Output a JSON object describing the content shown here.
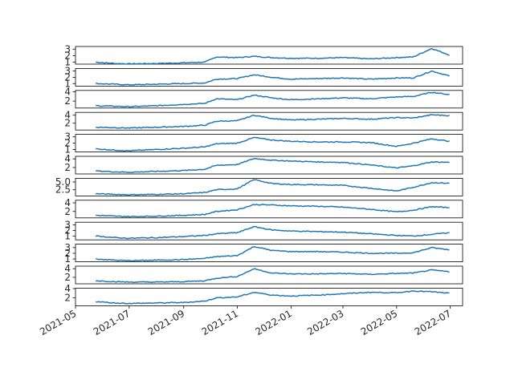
{
  "chart_data": {
    "type": "line",
    "layout": "12 stacked panels sharing the x axis",
    "grid": false,
    "legend": "none",
    "line_color": "#1f77b4",
    "x_tick_labels": [
      "2021-05",
      "2021-07",
      "2021-09",
      "2021-11",
      "2022-01",
      "2022-03",
      "2022-05",
      "2022-07"
    ],
    "x_range": [
      "2021-05-01",
      "2022-07-15"
    ],
    "x_knots": [
      "2021-05-24",
      "2021-06-15",
      "2021-07-01",
      "2021-08-01",
      "2021-09-01",
      "2021-09-25",
      "2021-10-08",
      "2021-11-01",
      "2021-11-20",
      "2021-12-10",
      "2022-01-01",
      "2022-02-01",
      "2022-03-01",
      "2022-04-01",
      "2022-05-01",
      "2022-05-20",
      "2022-06-10",
      "2022-06-30"
    ],
    "panels": [
      {
        "ylim": [
          0.7,
          3.4
        ],
        "yticks": [
          1,
          2,
          3
        ],
        "tick_labels": [
          "1",
          "2",
          "3"
        ],
        "y": [
          1.0,
          0.8,
          0.75,
          0.8,
          0.9,
          1.0,
          1.8,
          1.7,
          1.9,
          1.7,
          1.6,
          1.6,
          1.7,
          1.5,
          1.7,
          1.8,
          3.1,
          2.1
        ]
      },
      {
        "ylim": [
          0.6,
          3.4
        ],
        "yticks": [
          1,
          2,
          3
        ],
        "tick_labels": [
          "1",
          "2",
          "3"
        ],
        "y": [
          1.0,
          0.9,
          0.8,
          0.9,
          1.0,
          1.1,
          1.7,
          1.8,
          2.4,
          2.0,
          1.7,
          1.8,
          1.9,
          1.7,
          1.9,
          1.9,
          3.0,
          2.2
        ]
      },
      {
        "ylim": [
          0.5,
          4.3
        ],
        "yticks": [
          2,
          4
        ],
        "tick_labels": [
          "2",
          "4"
        ],
        "y": [
          1.0,
          0.9,
          0.8,
          1.0,
          1.3,
          1.5,
          2.5,
          2.3,
          3.3,
          2.7,
          2.3,
          2.5,
          2.7,
          2.5,
          2.9,
          3.0,
          3.9,
          3.4
        ]
      },
      {
        "ylim": [
          0.3,
          4.7
        ],
        "yticks": [
          2,
          4
        ],
        "tick_labels": [
          "2",
          "4"
        ],
        "y": [
          1.0,
          0.9,
          0.8,
          1.0,
          1.2,
          1.5,
          2.5,
          2.6,
          4.0,
          3.2,
          2.8,
          3.0,
          3.2,
          3.0,
          3.4,
          3.3,
          4.1,
          3.9
        ]
      },
      {
        "ylim": [
          0.6,
          3.4
        ],
        "yticks": [
          1,
          2,
          3
        ],
        "tick_labels": [
          "1",
          "2",
          "3"
        ],
        "y": [
          1.1,
          0.9,
          0.8,
          1.0,
          1.2,
          1.4,
          1.9,
          2.0,
          2.9,
          2.5,
          2.3,
          2.2,
          2.2,
          2.1,
          1.5,
          2.0,
          2.7,
          2.3
        ]
      },
      {
        "ylim": [
          0.5,
          4.6
        ],
        "yticks": [
          2,
          4
        ],
        "tick_labels": [
          "2",
          "4"
        ],
        "y": [
          1.2,
          1.0,
          0.9,
          1.1,
          1.3,
          1.6,
          2.5,
          2.7,
          4.1,
          3.7,
          3.5,
          3.3,
          3.2,
          2.6,
          1.9,
          2.4,
          3.3,
          3.2
        ]
      },
      {
        "ylim": [
          0.5,
          6.2
        ],
        "yticks": [
          2.5,
          5.0
        ],
        "tick_labels": [
          "2.5",
          "5.0"
        ],
        "y": [
          1.2,
          1.0,
          0.9,
          1.0,
          1.2,
          1.6,
          2.5,
          2.8,
          5.8,
          4.5,
          4.2,
          4.1,
          3.9,
          3.0,
          2.1,
          3.3,
          4.8,
          4.6
        ]
      },
      {
        "ylim": [
          0.5,
          4.6
        ],
        "yticks": [
          2,
          4
        ],
        "tick_labels": [
          "2",
          "4"
        ],
        "y": [
          1.1,
          0.9,
          0.8,
          0.9,
          1.1,
          1.3,
          2.0,
          2.4,
          3.6,
          3.5,
          3.3,
          3.2,
          3.0,
          2.5,
          1.9,
          2.3,
          3.1,
          2.9
        ]
      },
      {
        "ylim": [
          0.3,
          3.5
        ],
        "yticks": [
          1,
          2,
          3
        ],
        "tick_labels": [
          "1",
          "2",
          "3"
        ],
        "y": [
          1.0,
          0.7,
          0.6,
          0.7,
          0.9,
          1.1,
          1.4,
          1.6,
          2.7,
          2.1,
          1.9,
          1.8,
          1.7,
          1.4,
          1.1,
          1.0,
          1.3,
          1.6
        ]
      },
      {
        "ylim": [
          0.5,
          3.6
        ],
        "yticks": [
          1,
          2,
          3
        ],
        "tick_labels": [
          "1",
          "2",
          "3"
        ],
        "y": [
          1.0,
          0.8,
          0.7,
          0.8,
          0.9,
          1.1,
          1.4,
          1.6,
          3.2,
          2.5,
          2.3,
          2.3,
          2.2,
          2.0,
          2.0,
          2.1,
          3.0,
          2.6
        ]
      },
      {
        "ylim": [
          0.5,
          4.6
        ],
        "yticks": [
          2,
          4
        ],
        "tick_labels": [
          "2",
          "4"
        ],
        "y": [
          1.2,
          1.0,
          0.9,
          0.9,
          1.0,
          1.2,
          1.8,
          2.2,
          4.0,
          3.0,
          2.8,
          2.8,
          2.9,
          2.7,
          2.9,
          3.0,
          3.7,
          3.3
        ]
      },
      {
        "ylim": [
          0.3,
          4.1
        ],
        "yticks": [
          2,
          4
        ],
        "tick_labels": [
          "2",
          "4"
        ],
        "y": [
          1.2,
          0.9,
          0.8,
          0.9,
          1.0,
          1.3,
          2.0,
          2.2,
          3.2,
          2.6,
          2.4,
          2.6,
          2.9,
          3.2,
          3.1,
          3.5,
          3.3,
          3.0
        ]
      }
    ]
  }
}
